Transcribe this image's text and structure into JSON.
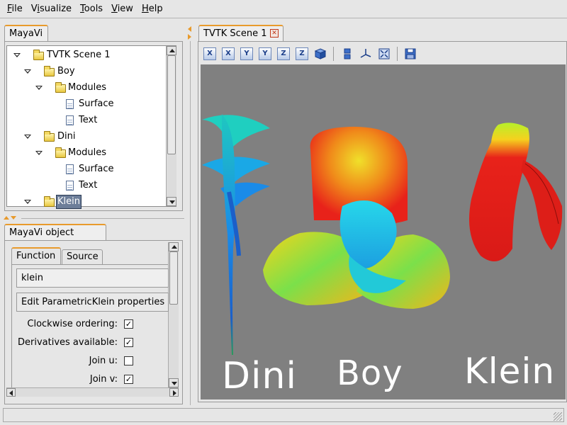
{
  "menu": {
    "file": {
      "u": "F",
      "rest": "ile"
    },
    "visualize": {
      "pre": "V",
      "u": "i",
      "rest": "sualize"
    },
    "tools": {
      "u": "T",
      "rest": "ools"
    },
    "view": {
      "u": "V",
      "rest": "iew"
    },
    "help": {
      "u": "H",
      "rest": "elp"
    }
  },
  "left_panel": {
    "tab_label": "MayaVi",
    "tree": [
      {
        "label": "TVTK Scene 1"
      },
      {
        "label": "Boy"
      },
      {
        "label": "Modules"
      },
      {
        "label": "Surface"
      },
      {
        "label": "Text"
      },
      {
        "label": "Dini"
      },
      {
        "label": "Modules"
      },
      {
        "label": "Surface"
      },
      {
        "label": "Text"
      },
      {
        "label": "Klein"
      }
    ]
  },
  "editor": {
    "tab_label": "MayaVi object editor",
    "subtabs": [
      "Function",
      "Source"
    ],
    "function_value": "klein",
    "edit_button": "Edit ParametricKlein properties",
    "properties": [
      {
        "label": "Clockwise ordering:",
        "checked": true
      },
      {
        "label": "Derivatives available:",
        "checked": true
      },
      {
        "label": "Join u:",
        "checked": false
      },
      {
        "label": "Join v:",
        "checked": true
      }
    ],
    "check_mark": "✓"
  },
  "scene_tab": {
    "label": "TVTK Scene 1",
    "close_glyph": "✕"
  },
  "toolbar": {
    "buttons": [
      "X",
      "X",
      "Y",
      "Y",
      "Z",
      "Z"
    ]
  },
  "scene": {
    "labels": [
      "Dini",
      "Boy",
      "Klein"
    ],
    "background": "#808080"
  },
  "colors": {
    "accent": "#e89a2c",
    "selection": "#6d7e99"
  }
}
